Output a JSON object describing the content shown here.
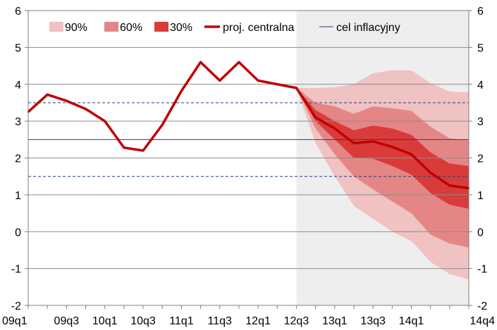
{
  "chart_data": {
    "type": "area",
    "title": "",
    "xlabel": "",
    "ylabel": "",
    "ylim": [
      -2,
      6
    ],
    "yticks": [
      -2,
      -1,
      0,
      1,
      2,
      3,
      4,
      5,
      6
    ],
    "categories": [
      "09q1",
      "09q2",
      "09q3",
      "09q4",
      "10q1",
      "10q2",
      "10q3",
      "10q4",
      "11q1",
      "11q2",
      "11q3",
      "11q4",
      "12q1",
      "12q2",
      "12q3",
      "12q4",
      "13q1",
      "13q2",
      "13q3",
      "13q4",
      "14q1",
      "14q2",
      "14q3",
      "14q4"
    ],
    "x_tick_labels": [
      "09q1",
      "09q3",
      "10q1",
      "10q3",
      "11q1",
      "11q3",
      "12q1",
      "12q3",
      "13q1",
      "13q3",
      "14q1",
      "14q4"
    ],
    "projection_shading_from": "12q3",
    "grid": true,
    "dual_y_axis": true,
    "legend_position": "top",
    "legend": [
      {
        "label": "90%",
        "kind": "patch",
        "color": "#f0c2c2"
      },
      {
        "label": "60%",
        "kind": "patch",
        "color": "#e58686"
      },
      {
        "label": "30%",
        "kind": "patch",
        "color": "#d93b3b"
      },
      {
        "label": "proj. centralna",
        "kind": "line",
        "color": "#c00000"
      },
      {
        "label": "cel inflacyjny",
        "kind": "thin-line",
        "color": "#1f3f7a"
      }
    ],
    "colors": {
      "band90": "#f0c2c2",
      "band60": "#e58686",
      "band30": "#d93b3b",
      "central": "#c00000",
      "target": "#1f3f7a",
      "shade": "#eeeeee",
      "grid": "#8c8c8c"
    },
    "inflation_target": 2.5,
    "tolerance_band": [
      1.5,
      3.5
    ],
    "central_projection": [
      3.25,
      3.72,
      3.55,
      3.33,
      3.0,
      2.28,
      2.2,
      2.9,
      3.82,
      4.6,
      4.1,
      4.6,
      4.1,
      4.0,
      3.9,
      3.1,
      2.8,
      2.4,
      2.45,
      2.3,
      2.1,
      1.6,
      1.25,
      1.18
    ],
    "fan_start_index": 14,
    "bands": {
      "p90": {
        "upper": [
          3.9,
          3.9,
          3.92,
          4.0,
          4.3,
          4.38,
          4.38,
          4.03,
          3.8,
          3.78
        ],
        "lower": [
          3.9,
          2.4,
          1.5,
          0.7,
          0.35,
          0.0,
          -0.25,
          -0.82,
          -1.15,
          -1.3
        ]
      },
      "p60": {
        "upper": [
          3.9,
          3.5,
          3.4,
          3.2,
          3.4,
          3.35,
          3.28,
          2.85,
          2.53,
          2.48
        ],
        "lower": [
          3.9,
          2.8,
          2.1,
          1.5,
          1.15,
          0.82,
          0.5,
          -0.08,
          -0.32,
          -0.43
        ]
      },
      "p30": {
        "upper": [
          3.9,
          3.3,
          3.0,
          2.75,
          2.88,
          2.8,
          2.63,
          2.15,
          1.85,
          1.78
        ],
        "lower": [
          3.9,
          3.0,
          2.5,
          2.0,
          1.98,
          1.78,
          1.55,
          1.05,
          0.73,
          0.62
        ]
      }
    }
  }
}
